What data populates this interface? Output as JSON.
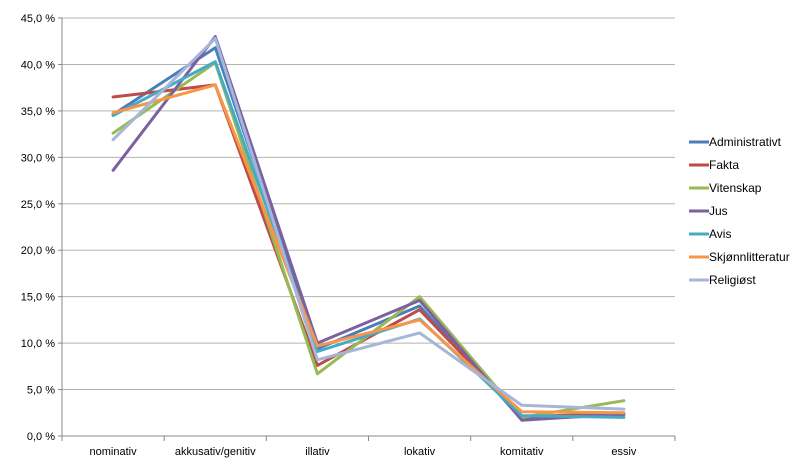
{
  "chart_data": {
    "type": "line",
    "title": "",
    "xlabel": "",
    "ylabel": "",
    "categories": [
      "nominativ",
      "akkusativ/genitiv",
      "illativ",
      "lokativ",
      "komitativ",
      "essiv"
    ],
    "ylim": [
      0,
      45
    ],
    "yticks": [
      0,
      5,
      10,
      15,
      20,
      25,
      30,
      35,
      40,
      45
    ],
    "ytick_labels": [
      "0,0 %",
      "5,0 %",
      "10,0 %",
      "15,0 %",
      "20,0 %",
      "25,0 %",
      "30,0 %",
      "35,0 %",
      "40,0 %",
      "45,0 %"
    ],
    "grid": true,
    "legend_position": "right",
    "series": [
      {
        "name": "Administrativt",
        "color": "#4a7ebb",
        "values": [
          34.6,
          41.8,
          9.4,
          14.0,
          1.8,
          2.3
        ]
      },
      {
        "name": "Fakta",
        "color": "#be4b48",
        "values": [
          36.5,
          37.8,
          7.6,
          13.6,
          2.1,
          2.4
        ]
      },
      {
        "name": "Vitenskap",
        "color": "#98b954",
        "values": [
          32.6,
          40.2,
          6.7,
          15.0,
          2.0,
          3.8
        ]
      },
      {
        "name": "Jus",
        "color": "#7d60a0",
        "values": [
          28.6,
          43.0,
          10.0,
          14.6,
          1.7,
          2.4
        ]
      },
      {
        "name": "Avis",
        "color": "#46aac4",
        "values": [
          34.5,
          40.3,
          9.1,
          12.6,
          2.2,
          2.0
        ]
      },
      {
        "name": "Skjønnlitteratur",
        "color": "#f79646",
        "values": [
          34.8,
          37.8,
          9.7,
          12.5,
          2.6,
          2.5
        ]
      },
      {
        "name": "Religiøst",
        "color": "#a5b6d8",
        "values": [
          31.9,
          42.8,
          8.2,
          11.1,
          3.3,
          2.9
        ]
      }
    ]
  }
}
